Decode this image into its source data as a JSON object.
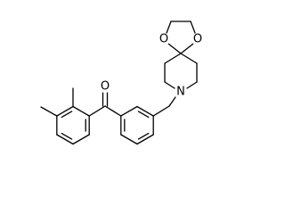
{
  "atoms": {
    "ketone_oxygen": "O",
    "dioxolane_oxygen_left": "O",
    "dioxolane_oxygen_right": "O",
    "nitrogen": "N"
  }
}
